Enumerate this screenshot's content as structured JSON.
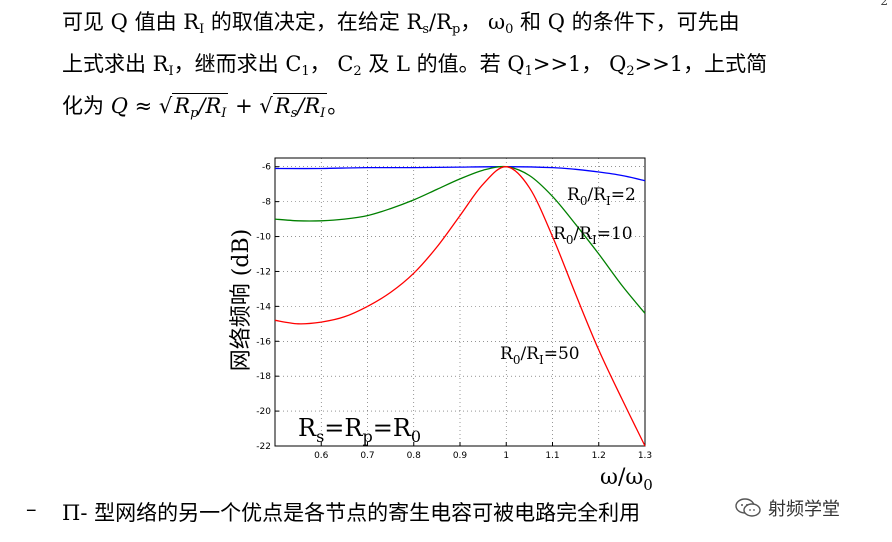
{
  "page_number": "2",
  "paragraph": {
    "line1": {
      "a": "可见 Q 值由 R",
      "a_sub": "I",
      "b": " 的取值决定，在给定 R",
      "c_sub": "s",
      "d": "/R",
      "d_sub": "p",
      "e": "， ω",
      "e_sub": "0",
      "f": " 和 Q 的条件下，可先由"
    },
    "line2": {
      "a": "上式求出 R",
      "a_sub": "I",
      "b": "，继而求出 C",
      "b_sub": "1",
      "c": "， C",
      "c_sub": "2",
      "d": " 及 L 的值。若 Q",
      "d_sub": "1",
      "e": ">>1， Q",
      "e_sub": "2",
      "f": ">>1，上式简"
    },
    "line3": {
      "a": "化为 ",
      "q": "Q",
      "approx": " ≈ ",
      "s1_a": "R",
      "s1_a_sub": "p",
      "s1_b": "/R",
      "s1_b_sub": "I",
      "plus": " + ",
      "s2_a": "R",
      "s2_a_sub": "s",
      "s2_b": "/R",
      "s2_b_sub": "I",
      "end": "。"
    }
  },
  "chart_data": {
    "type": "line",
    "ylabel": "网络频响 (dB)",
    "xlabel_main": "ω/ω",
    "xlabel_sub": "0",
    "xlim": [
      0.5,
      1.3
    ],
    "ylim": [
      -22,
      -5.5
    ],
    "x_ticks": [
      "0.6",
      "0.7",
      "0.8",
      "0.9",
      "1",
      "1.1",
      "1.2",
      "1.3"
    ],
    "x_tick_values": [
      0.6,
      0.7,
      0.8,
      0.9,
      1.0,
      1.1,
      1.2,
      1.3
    ],
    "y_ticks": [
      "-6",
      "-8",
      "-10",
      "-12",
      "-14",
      "-16",
      "-18",
      "-20",
      "-22"
    ],
    "y_tick_values": [
      -6,
      -8,
      -10,
      -12,
      -14,
      -16,
      -18,
      -20,
      -22
    ],
    "grid": true,
    "series": [
      {
        "label_main": "R",
        "label_sub": "0",
        "label_mid": "/R",
        "label_sub2": "I",
        "label_end": "=2",
        "color": "#0000ff",
        "x": [
          0.5,
          0.6,
          0.7,
          0.8,
          0.9,
          1.0,
          1.1,
          1.15,
          1.2,
          1.25,
          1.3
        ],
        "y": [
          -6.1,
          -6.1,
          -6.05,
          -6.05,
          -6.02,
          -6.0,
          -6.05,
          -6.15,
          -6.3,
          -6.5,
          -6.8
        ]
      },
      {
        "label_main": "R",
        "label_sub": "0",
        "label_mid": "/R",
        "label_sub2": "I",
        "label_end": "=10",
        "color": "#008000",
        "x": [
          0.5,
          0.55,
          0.6,
          0.65,
          0.7,
          0.75,
          0.8,
          0.85,
          0.9,
          0.95,
          1.0,
          1.05,
          1.1,
          1.15,
          1.2,
          1.25,
          1.3
        ],
        "y": [
          -9.0,
          -9.1,
          -9.1,
          -9.0,
          -8.8,
          -8.4,
          -7.9,
          -7.3,
          -6.7,
          -6.2,
          -6.0,
          -6.5,
          -7.7,
          -9.3,
          -11.0,
          -12.8,
          -14.4
        ]
      },
      {
        "label_main": "R",
        "label_sub": "0",
        "label_mid": "/R",
        "label_sub2": "I",
        "label_end": "=50",
        "color": "#ff0000",
        "x": [
          0.5,
          0.55,
          0.6,
          0.65,
          0.7,
          0.75,
          0.8,
          0.85,
          0.9,
          0.95,
          1.0,
          1.05,
          1.1,
          1.15,
          1.2,
          1.25,
          1.3
        ],
        "y": [
          -14.8,
          -15.0,
          -14.9,
          -14.6,
          -14.0,
          -13.2,
          -12.1,
          -10.6,
          -8.8,
          -7.0,
          -6.0,
          -7.2,
          -10.0,
          -13.3,
          -16.5,
          -19.3,
          -22.0
        ]
      }
    ],
    "annotation": {
      "a": "R",
      "a_sub": "s",
      "b": "=R",
      "b_sub": "p",
      "c": "=R",
      "c_sub": "0"
    }
  },
  "bullet": {
    "dash": "–",
    "text": "Π- 型网络的另一个优点是各节点的寄生电容可被电路完全利用"
  },
  "watermark": {
    "icon": "wechat-icon",
    "text": "射频学堂"
  }
}
